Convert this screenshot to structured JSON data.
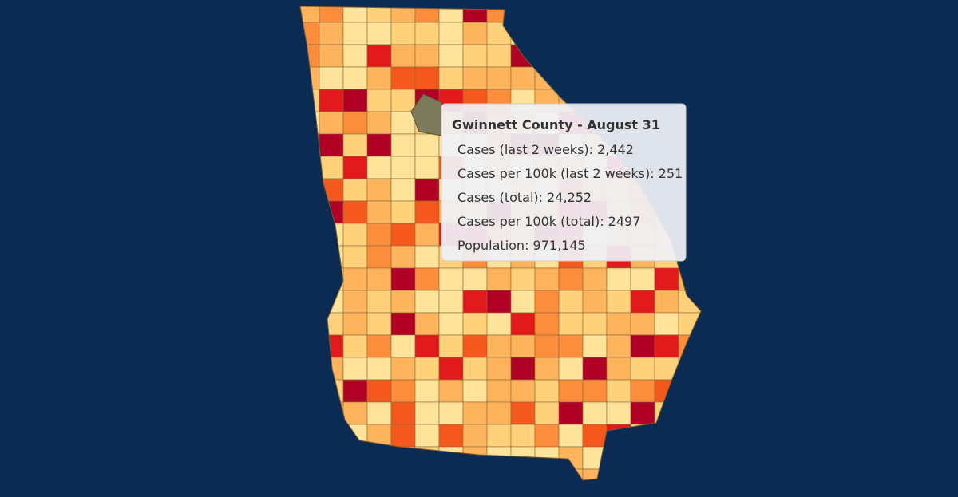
{
  "tooltip": {
    "title": "Gwinnett County - August 31",
    "lines": [
      "Cases (last 2 weeks): 2,442",
      "Cases per 100k (last 2 weeks): 251",
      "Cases (total): 24,252",
      "Cases per 100k (total): 2497",
      "Population: 971,145"
    ]
  }
}
